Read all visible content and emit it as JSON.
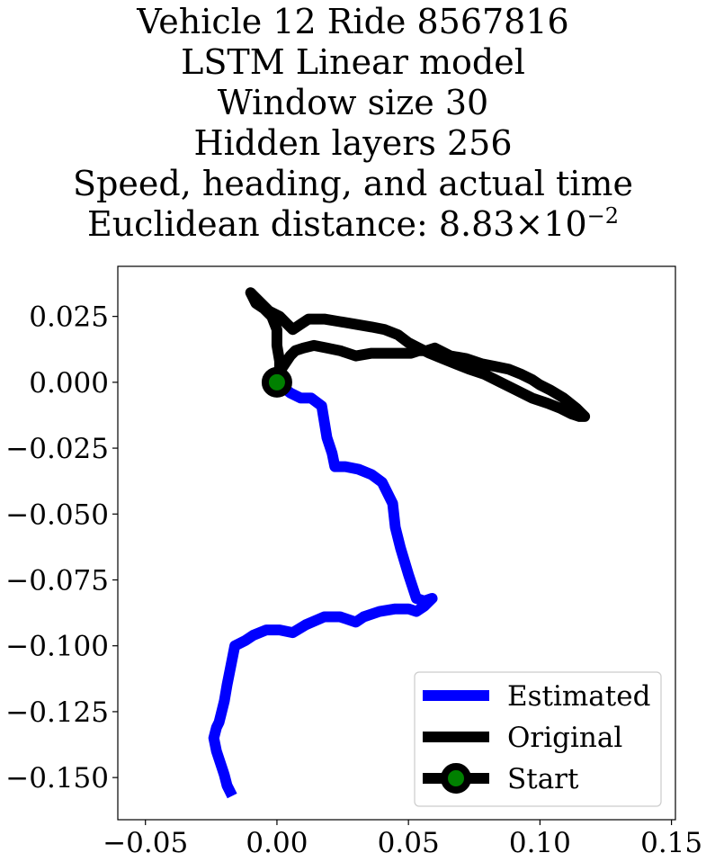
{
  "chart_data": {
    "type": "line",
    "title_lines": [
      "Vehicle 12 Ride 8567816",
      "LSTM Linear model",
      "Window size 30",
      "Hidden layers 256",
      "Speed, heading, and actual time"
    ],
    "distance_label": "Euclidean distance: ",
    "distance_mantissa": "8.83",
    "distance_times": "×",
    "distance_base": "10",
    "distance_exponent": "−2",
    "xlabel": "",
    "ylabel": "",
    "xlim": [
      -0.0605,
      0.1515
    ],
    "ylim": [
      -0.166,
      0.044
    ],
    "xticks": [
      -0.05,
      0.0,
      0.05,
      0.1,
      0.15
    ],
    "xtick_labels": [
      "−0.05",
      "0.00",
      "0.05",
      "0.10",
      "0.15"
    ],
    "yticks": [
      0.025,
      0.0,
      -0.025,
      -0.05,
      -0.075,
      -0.1,
      -0.125,
      -0.15
    ],
    "ytick_labels": [
      "0.025",
      "0.000",
      "−0.025",
      "−0.050",
      "−0.075",
      "−0.100",
      "−0.125",
      "−0.150"
    ],
    "grid": false,
    "legend_position": "lower-right",
    "series": [
      {
        "name": "Estimated",
        "color": "#0000ff",
        "x": [
          0.0,
          0.005,
          0.009,
          0.013,
          0.017,
          0.018,
          0.019,
          0.021,
          0.022,
          0.023,
          0.026,
          0.031,
          0.036,
          0.04,
          0.044,
          0.045,
          0.047,
          0.05,
          0.053,
          0.056,
          0.059,
          0.056,
          0.053,
          0.05,
          0.045,
          0.039,
          0.033,
          0.03,
          0.024,
          0.018,
          0.011,
          0.006,
          0.001,
          -0.004,
          -0.009,
          -0.012,
          -0.016,
          -0.017,
          -0.018,
          -0.019,
          -0.02,
          -0.021,
          -0.022,
          -0.023,
          -0.024,
          -0.023,
          -0.021,
          -0.02,
          -0.019,
          -0.017
        ],
        "y": [
          0.0,
          -0.004,
          -0.006,
          -0.006,
          -0.009,
          -0.015,
          -0.021,
          -0.027,
          -0.032,
          -0.032,
          -0.032,
          -0.033,
          -0.035,
          -0.038,
          -0.046,
          -0.055,
          -0.063,
          -0.073,
          -0.082,
          -0.083,
          -0.082,
          -0.085,
          -0.087,
          -0.086,
          -0.086,
          -0.087,
          -0.089,
          -0.091,
          -0.089,
          -0.089,
          -0.092,
          -0.095,
          -0.094,
          -0.094,
          -0.096,
          -0.098,
          -0.1,
          -0.105,
          -0.11,
          -0.115,
          -0.121,
          -0.125,
          -0.129,
          -0.131,
          -0.135,
          -0.14,
          -0.146,
          -0.149,
          -0.153,
          -0.157
        ]
      },
      {
        "name": "Original",
        "color": "#000000",
        "x": [
          0.0,
          0.001,
          0.001,
          0.0,
          0.0,
          -0.002,
          -0.005,
          -0.008,
          -0.009,
          -0.01,
          -0.009,
          -0.006,
          -0.003,
          0.001,
          0.004,
          0.006,
          0.009,
          0.012,
          0.018,
          0.024,
          0.03,
          0.036,
          0.041,
          0.046,
          0.05,
          0.054,
          0.058,
          0.063,
          0.068,
          0.073,
          0.079,
          0.085,
          0.091,
          0.097,
          0.103,
          0.108,
          0.112,
          0.115,
          0.117,
          0.114,
          0.109,
          0.104,
          0.1,
          0.097,
          0.093,
          0.088,
          0.083,
          0.078,
          0.072,
          0.066,
          0.06,
          0.057,
          0.054,
          0.051,
          0.047,
          0.042,
          0.036,
          0.03,
          0.024,
          0.019,
          0.014,
          0.01,
          0.007,
          0.005,
          0.003,
          0.001,
          0.0
        ],
        "y": [
          0.0,
          0.004,
          0.008,
          0.014,
          0.02,
          0.025,
          0.028,
          0.03,
          0.032,
          0.034,
          0.033,
          0.03,
          0.027,
          0.025,
          0.022,
          0.02,
          0.022,
          0.024,
          0.024,
          0.023,
          0.022,
          0.021,
          0.02,
          0.018,
          0.015,
          0.013,
          0.011,
          0.009,
          0.007,
          0.005,
          0.003,
          0.0,
          -0.003,
          -0.006,
          -0.008,
          -0.01,
          -0.012,
          -0.013,
          -0.013,
          -0.01,
          -0.006,
          -0.003,
          -0.001,
          0.001,
          0.003,
          0.005,
          0.006,
          0.007,
          0.009,
          0.01,
          0.013,
          0.012,
          0.012,
          0.011,
          0.011,
          0.011,
          0.011,
          0.01,
          0.012,
          0.013,
          0.014,
          0.013,
          0.012,
          0.01,
          0.007,
          0.004,
          0.001
        ]
      }
    ],
    "start": {
      "name": "Start",
      "x": 0.0,
      "y": 0.0,
      "marker_edge_color": "#000000",
      "marker_face_color": "#008000"
    }
  }
}
